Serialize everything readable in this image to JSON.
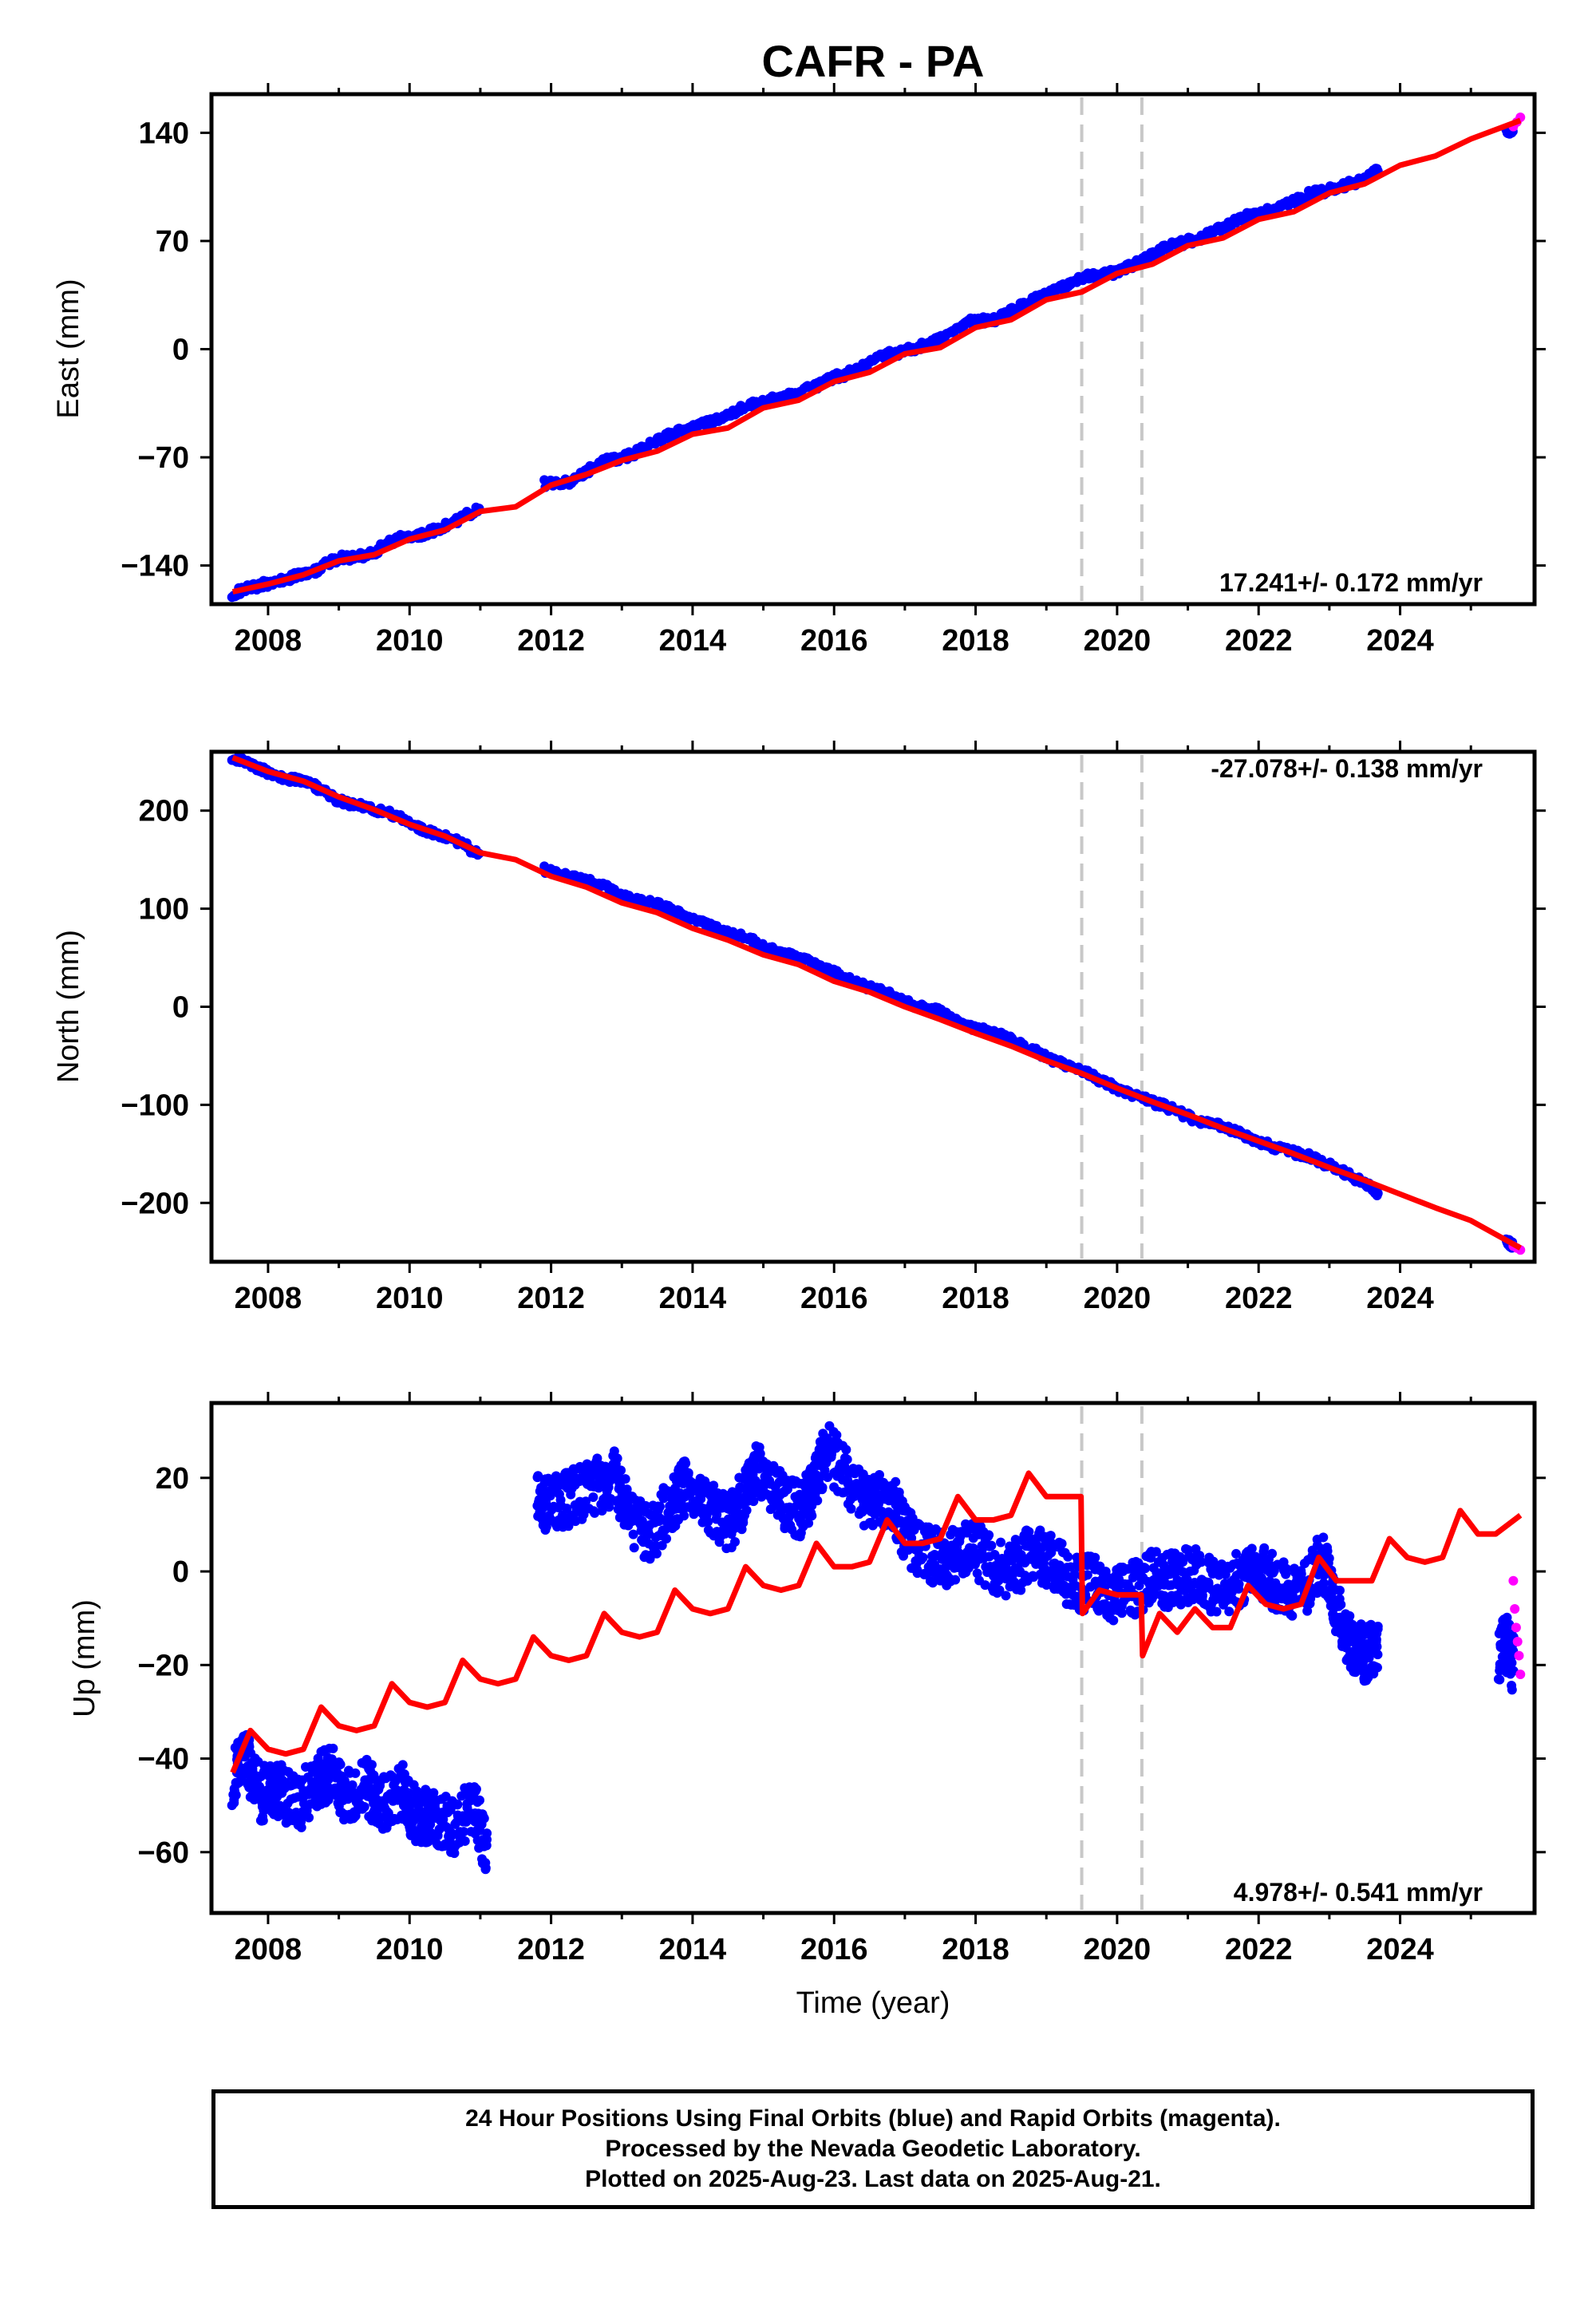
{
  "title": "CAFR - PA",
  "footer": {
    "line1": "24 Hour Positions Using Final Orbits (blue) and Rapid Orbits (magenta).",
    "line2": "Processed by the Nevada Geodetic Laboratory.",
    "line3": "Plotted on 2025-Aug-23. Last data on 2025-Aug-21."
  },
  "colors": {
    "final": "#0000ff",
    "rapid": "#ff00ff",
    "model": "#ff0000",
    "event_line": "#c8c8c8"
  },
  "chart_data": [
    {
      "type": "scatter",
      "ylabel": "East (mm)",
      "xlabel": "",
      "xlim": [
        2007.2,
        2025.9
      ],
      "ylim": [
        -165,
        165
      ],
      "xticks": [
        2008,
        2010,
        2012,
        2014,
        2016,
        2018,
        2020,
        2022,
        2024
      ],
      "yticks": [
        -140,
        -70,
        0,
        70,
        140
      ],
      "ytick_labels": [
        "−140",
        "−70",
        "0",
        "70",
        "140"
      ],
      "rate": "17.241+/- 0.172 mm/yr",
      "rate_position": "bottom-right",
      "event_lines": [
        2019.5,
        2020.35
      ],
      "series": [
        {
          "role": "final",
          "x": [
            2007.5,
            2007.8,
            2008.2,
            2008.6,
            2009.0,
            2009.4,
            2009.8,
            2010.2,
            2010.6,
            2011.0,
            2011.9,
            2012.3,
            2012.7,
            2013.1,
            2013.5,
            2013.9,
            2014.3,
            2014.7,
            2015.1,
            2015.5,
            2015.9,
            2016.3,
            2016.7,
            2017.1,
            2017.5,
            2017.9,
            2018.3,
            2018.7,
            2019.1,
            2019.5,
            2019.9,
            2020.3,
            2020.7,
            2021.1,
            2021.5,
            2021.9,
            2022.3,
            2022.7,
            2023.1,
            2023.5,
            2023.7,
            2025.5,
            2025.6
          ],
          "y": [
            -158,
            -154,
            -149,
            -145,
            -135,
            -134,
            -123,
            -120,
            -112,
            -103,
            -87,
            -86,
            -73,
            -69,
            -59,
            -52,
            -47,
            -38,
            -33,
            -29,
            -20,
            -14,
            -4,
            0,
            6,
            18,
            19,
            30,
            37,
            46,
            49,
            56,
            66,
            71,
            79,
            87,
            91,
            100,
            104,
            110,
            116,
            140,
            143
          ]
        },
        {
          "role": "rapid",
          "x": [
            2025.6,
            2025.65,
            2025.7
          ],
          "y": [
            144,
            147,
            150
          ]
        },
        {
          "role": "model",
          "x": [
            2007.5,
            2008.0,
            2008.5,
            2009.0,
            2009.5,
            2010.0,
            2010.5,
            2011.0,
            2011.5,
            2012.0,
            2012.5,
            2013.0,
            2013.5,
            2014.0,
            2014.5,
            2015.0,
            2015.5,
            2016.0,
            2016.5,
            2017.0,
            2017.5,
            2018.0,
            2018.5,
            2019.0,
            2019.5,
            2020.0,
            2020.5,
            2021.0,
            2021.5,
            2022.0,
            2022.5,
            2023.0,
            2023.5,
            2024.0,
            2024.5,
            2025.0,
            2025.7
          ],
          "y": [
            -157,
            -152,
            -146,
            -137,
            -133,
            -123,
            -117,
            -105,
            -102,
            -88,
            -81,
            -72,
            -66,
            -55,
            -51,
            -38,
            -33,
            -21,
            -15,
            -3,
            1,
            14,
            19,
            32,
            37,
            49,
            55,
            67,
            72,
            84,
            89,
            101,
            107,
            119,
            125,
            136,
            148
          ]
        }
      ]
    },
    {
      "type": "scatter",
      "ylabel": "North (mm)",
      "xlabel": "",
      "xlim": [
        2007.2,
        2025.9
      ],
      "ylim": [
        -260,
        260
      ],
      "xticks": [
        2008,
        2010,
        2012,
        2014,
        2016,
        2018,
        2020,
        2022,
        2024
      ],
      "yticks": [
        -200,
        -100,
        0,
        100,
        200
      ],
      "ytick_labels": [
        "−200",
        "−100",
        "0",
        "100",
        "200"
      ],
      "rate": "-27.078+/- 0.138 mm/yr",
      "rate_position": "top-right",
      "event_lines": [
        2019.5,
        2020.35
      ],
      "series": [
        {
          "role": "final",
          "x": [
            2007.5,
            2007.8,
            2008.2,
            2008.6,
            2009.0,
            2009.4,
            2009.8,
            2010.2,
            2010.6,
            2011.0,
            2011.9,
            2012.3,
            2012.7,
            2013.1,
            2013.5,
            2013.9,
            2014.3,
            2014.7,
            2015.1,
            2015.5,
            2015.9,
            2016.3,
            2016.7,
            2017.1,
            2017.5,
            2017.9,
            2018.3,
            2018.7,
            2019.1,
            2019.5,
            2019.9,
            2020.3,
            2020.7,
            2021.1,
            2021.5,
            2021.9,
            2022.3,
            2022.7,
            2023.1,
            2023.5,
            2023.7,
            2025.5,
            2025.6
          ],
          "y": [
            255,
            245,
            234,
            228,
            210,
            203,
            195,
            180,
            172,
            155,
            140,
            132,
            125,
            110,
            105,
            92,
            80,
            72,
            58,
            50,
            38,
            25,
            15,
            2,
            -5,
            -20,
            -28,
            -40,
            -55,
            -65,
            -80,
            -92,
            -102,
            -115,
            -122,
            -135,
            -145,
            -152,
            -165,
            -180,
            -190,
            -240,
            -243
          ]
        },
        {
          "role": "rapid",
          "x": [
            2025.6,
            2025.65,
            2025.7
          ],
          "y": [
            -244,
            -246,
            -248
          ]
        },
        {
          "role": "model",
          "x": [
            2007.5,
            2008.0,
            2008.5,
            2009.0,
            2009.5,
            2010.0,
            2010.5,
            2011.0,
            2011.5,
            2012.0,
            2012.5,
            2013.0,
            2013.5,
            2014.0,
            2014.5,
            2015.0,
            2015.5,
            2016.0,
            2016.5,
            2017.0,
            2017.5,
            2018.0,
            2018.5,
            2019.0,
            2019.5,
            2020.0,
            2020.5,
            2021.0,
            2021.5,
            2022.0,
            2022.5,
            2023.0,
            2023.5,
            2024.0,
            2024.5,
            2025.0,
            2025.7
          ],
          "y": [
            254,
            240,
            230,
            214,
            201,
            186,
            174,
            157,
            150,
            133,
            122,
            106,
            96,
            80,
            68,
            53,
            43,
            26,
            15,
            0,
            -13,
            -27,
            -40,
            -55,
            -68,
            -83,
            -97,
            -110,
            -124,
            -137,
            -150,
            -164,
            -177,
            -191,
            -205,
            -218,
            -246
          ]
        }
      ]
    },
    {
      "type": "scatter",
      "ylabel": "Up (mm)",
      "xlabel": "Time (year)",
      "xlim": [
        2007.2,
        2025.9
      ],
      "ylim": [
        -73,
        36
      ],
      "xticks": [
        2008,
        2010,
        2012,
        2014,
        2016,
        2018,
        2020,
        2022,
        2024
      ],
      "yticks": [
        -60,
        -40,
        -20,
        0,
        20
      ],
      "ytick_labels": [
        "−60",
        "−40",
        "−20",
        "0",
        "20"
      ],
      "rate": "4.978+/- 0.541 mm/yr",
      "rate_position": "bottom-right",
      "event_lines": [
        2019.5,
        2020.35
      ],
      "series": [
        {
          "role": "final",
          "x": [
            2007.5,
            2007.7,
            2007.9,
            2008.1,
            2008.4,
            2008.7,
            2008.9,
            2009.1,
            2009.4,
            2009.6,
            2009.9,
            2010.1,
            2010.3,
            2010.6,
            2010.9,
            2011.1,
            2011.8,
            2012.0,
            2012.3,
            2012.6,
            2012.9,
            2013.1,
            2013.4,
            2013.7,
            2013.9,
            2014.2,
            2014.5,
            2014.7,
            2014.9,
            2015.2,
            2015.5,
            2015.7,
            2015.9,
            2016.2,
            2016.5,
            2016.8,
            2017.0,
            2017.3,
            2017.6,
            2017.9,
            2018.2,
            2018.5,
            2018.8,
            2019.1,
            2019.4,
            2019.6,
            2019.9,
            2020.2,
            2020.5,
            2020.8,
            2021.1,
            2021.4,
            2021.7,
            2022.0,
            2022.3,
            2022.6,
            2022.9,
            2023.1,
            2023.3,
            2023.5,
            2023.7,
            2025.4,
            2025.5,
            2025.6
          ],
          "y": [
            -44,
            -40,
            -48,
            -46,
            -50,
            -45,
            -43,
            -48,
            -46,
            -50,
            -47,
            -53,
            -52,
            -55,
            -50,
            -60,
            15,
            14,
            16,
            18,
            20,
            12,
            8,
            14,
            18,
            14,
            10,
            15,
            22,
            16,
            13,
            18,
            26,
            20,
            14,
            16,
            8,
            4,
            2,
            6,
            2,
            0,
            4,
            2,
            -3,
            -2,
            -5,
            -4,
            -1,
            -2,
            0,
            -4,
            -2,
            0,
            -3,
            -5,
            3,
            -8,
            -15,
            -18,
            -16,
            -18,
            -15,
            -20
          ]
        },
        {
          "role": "rapid",
          "x": [
            2025.6,
            2025.62,
            2025.64,
            2025.66,
            2025.68,
            2025.7
          ],
          "y": [
            -2,
            -8,
            -12,
            -15,
            -18,
            -22
          ]
        },
        {
          "role": "model",
          "x": [
            2007.5,
            2007.75,
            2008.0,
            2008.25,
            2008.5,
            2008.75,
            2009.0,
            2009.25,
            2009.5,
            2009.75,
            2010.0,
            2010.25,
            2010.5,
            2010.75,
            2011.0,
            2011.25,
            2011.5,
            2011.75,
            2012.0,
            2012.25,
            2012.5,
            2012.75,
            2013.0,
            2013.25,
            2013.5,
            2013.75,
            2014.0,
            2014.25,
            2014.5,
            2014.75,
            2015.0,
            2015.25,
            2015.5,
            2015.75,
            2016.0,
            2016.25,
            2016.5,
            2016.75,
            2017.0,
            2017.25,
            2017.5,
            2017.75,
            2018.0,
            2018.25,
            2018.5,
            2018.75,
            2019.0,
            2019.25,
            2019.49,
            2019.51,
            2019.75,
            2020.0,
            2020.34,
            2020.36,
            2020.6,
            2020.85,
            2021.1,
            2021.35,
            2021.6,
            2021.85,
            2022.1,
            2022.35,
            2022.6,
            2022.85,
            2023.1,
            2023.35,
            2023.6,
            2023.85,
            2024.1,
            2024.35,
            2024.6,
            2024.85,
            2025.1,
            2025.35,
            2025.7
          ],
          "y": [
            -43,
            -34,
            -38,
            -39,
            -38,
            -29,
            -33,
            -34,
            -33,
            -24,
            -28,
            -29,
            -28,
            -19,
            -23,
            -24,
            -23,
            -14,
            -18,
            -19,
            -18,
            -9,
            -13,
            -14,
            -13,
            -4,
            -8,
            -9,
            -8,
            1,
            -3,
            -4,
            -3,
            6,
            1,
            1,
            2,
            11,
            6,
            6,
            7,
            16,
            11,
            11,
            12,
            21,
            16,
            16,
            16,
            -9,
            -4,
            -5,
            -5,
            -18,
            -9,
            -13,
            -8,
            -12,
            -12,
            -3,
            -7,
            -8,
            -7,
            3,
            -2,
            -2,
            -2,
            7,
            3,
            2,
            3,
            13,
            8,
            8,
            12
          ]
        }
      ]
    }
  ]
}
